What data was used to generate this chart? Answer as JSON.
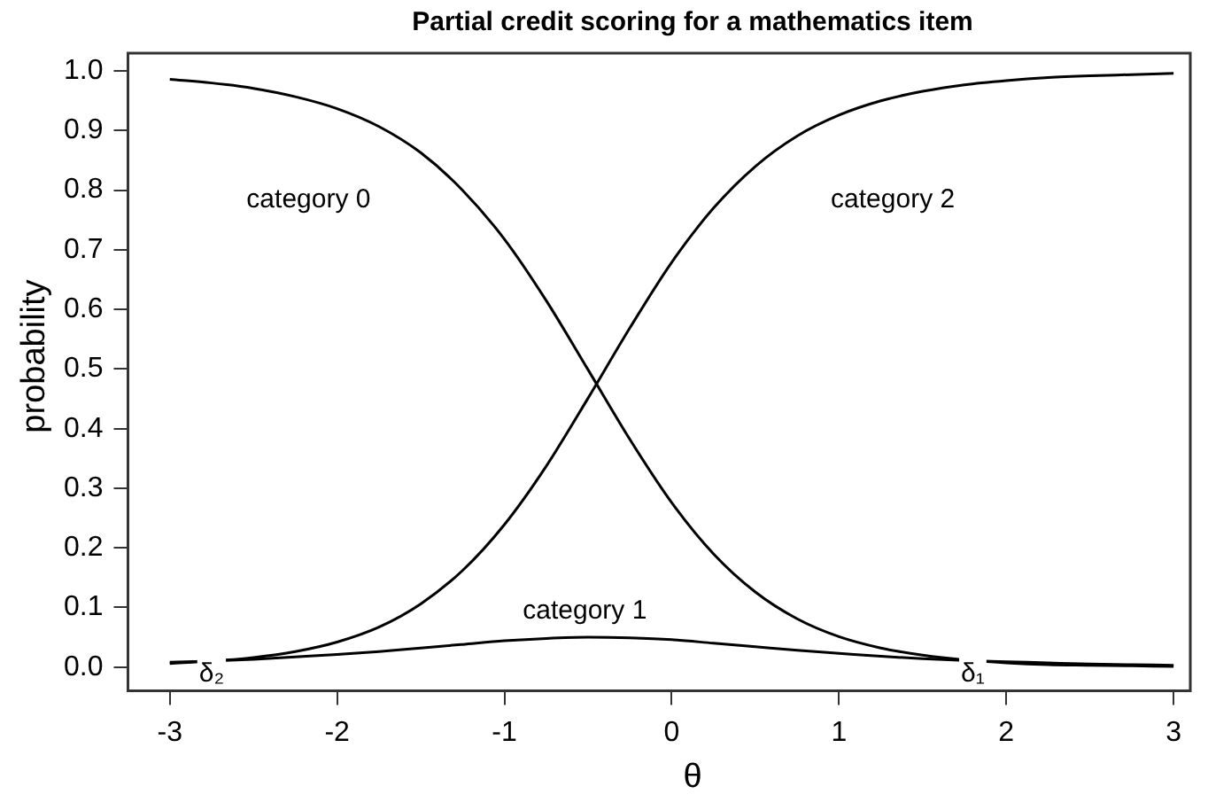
{
  "chart_data": {
    "type": "line",
    "title": "Partial credit scoring for a mathematics item",
    "xlabel": "θ",
    "ylabel": "probability",
    "x": [
      -3,
      -2.75,
      -2.5,
      -2.25,
      -2,
      -1.75,
      -1.5,
      -1.25,
      -1,
      -0.75,
      -0.5,
      -0.25,
      0,
      0.25,
      0.5,
      0.75,
      1,
      1.25,
      1.5,
      1.75,
      2,
      2.25,
      2.5,
      2.75,
      3
    ],
    "series": [
      {
        "name": "category 0",
        "color": "#000000",
        "values": [
          0.986,
          0.98,
          0.971,
          0.957,
          0.937,
          0.907,
          0.863,
          0.8,
          0.718,
          0.615,
          0.499,
          0.382,
          0.276,
          0.19,
          0.126,
          0.081,
          0.051,
          0.032,
          0.02,
          0.012,
          0.007,
          0.004,
          0.003,
          0.002,
          0.001
        ]
      },
      {
        "name": "category 1",
        "color": "#000000",
        "values": [
          0.008,
          0.01,
          0.013,
          0.017,
          0.021,
          0.026,
          0.032,
          0.038,
          0.044,
          0.048,
          0.05,
          0.049,
          0.046,
          0.04,
          0.034,
          0.028,
          0.023,
          0.018,
          0.014,
          0.011,
          0.009,
          0.007,
          0.005,
          0.004,
          0.003
        ]
      },
      {
        "name": "category 2",
        "color": "#000000",
        "values": [
          0.006,
          0.01,
          0.016,
          0.026,
          0.042,
          0.067,
          0.106,
          0.162,
          0.239,
          0.337,
          0.451,
          0.569,
          0.679,
          0.77,
          0.84,
          0.891,
          0.926,
          0.95,
          0.966,
          0.977,
          0.984,
          0.989,
          0.992,
          0.994,
          0.996
        ]
      }
    ],
    "xlim": [
      -3.25,
      3.1
    ],
    "ylim": [
      -0.04,
      1.03
    ],
    "xticks": [
      -3,
      -2,
      -1,
      0,
      1,
      2,
      3
    ],
    "yticks": [
      {
        "value": 0,
        "label": "0.0"
      },
      0.1,
      0.2,
      0.3,
      0.4,
      0.5,
      0.6,
      0.7,
      0.8,
      0.9,
      {
        "value": 1,
        "label": "1.0"
      }
    ],
    "grid": false,
    "legend": false,
    "marker": "none",
    "line_style": "solid",
    "annotations": [
      {
        "text": "δ₂",
        "x": -2.75,
        "y": 0.01
      },
      {
        "text": "δ₁",
        "x": 1.8,
        "y": 0.01
      }
    ]
  }
}
